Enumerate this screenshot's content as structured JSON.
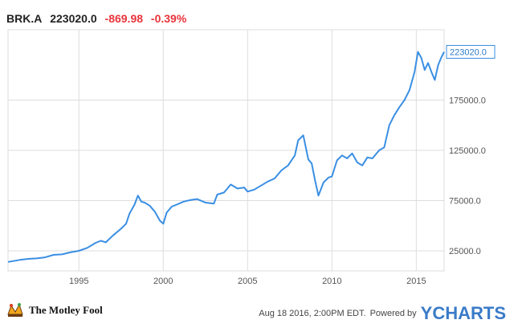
{
  "header": {
    "ticker": "BRK.A",
    "price": "223020.0",
    "change": "-869.98",
    "change_pct": "-0.39%"
  },
  "footer": {
    "brand": "The Motley Fool",
    "timestamp": "Aug 18 2016, 2:00PM EDT.",
    "powered_by": "Powered by",
    "provider": "YCHARTS"
  },
  "colors": {
    "line": "#3a8fe3",
    "grid": "#dddddd",
    "axis_text": "#555555",
    "negative": "#e8343b",
    "last_label_text": "#2d7ac7"
  },
  "chart_data": {
    "type": "line",
    "title": "",
    "xlabel": "",
    "ylabel": "",
    "xlim": [
      1990.8,
      2016.65
    ],
    "ylim": [
      5000,
      245000
    ],
    "x_ticks": [
      1995,
      2000,
      2005,
      2010,
      2015
    ],
    "x_tick_labels": [
      "1995",
      "2000",
      "2005",
      "2010",
      "2015"
    ],
    "y_ticks": [
      25000,
      75000,
      125000,
      175000
    ],
    "y_tick_labels": [
      "25000.0",
      "75000.0",
      "125000.0",
      "175000.0"
    ],
    "last_value_label": "223020.0",
    "grid": true,
    "series": [
      {
        "x": [
          1990.8,
          1991.5,
          1992.0,
          1992.5,
          1993.0,
          1993.5,
          1994.0,
          1994.5,
          1995.0,
          1995.5,
          1996.0,
          1996.3,
          1996.6,
          1997.0,
          1997.5,
          1997.8,
          1998.0,
          1998.3,
          1998.5,
          1998.7,
          1998.9,
          1999.2,
          1999.5,
          1999.8,
          2000.0,
          2000.2,
          2000.5,
          2000.8,
          2001.2,
          2001.6,
          2002.0,
          2002.5,
          2003.0,
          2003.2,
          2003.6,
          2004.0,
          2004.4,
          2004.8,
          2005.0,
          2005.4,
          2005.8,
          2006.2,
          2006.6,
          2007.0,
          2007.4,
          2007.8,
          2008.0,
          2008.3,
          2008.6,
          2008.8,
          2009.0,
          2009.2,
          2009.5,
          2009.8,
          2010.0,
          2010.3,
          2010.6,
          2010.9,
          2011.2,
          2011.5,
          2011.8,
          2012.1,
          2012.4,
          2012.8,
          2013.1,
          2013.4,
          2013.7,
          2014.0,
          2014.3,
          2014.6,
          2014.9,
          2015.1,
          2015.3,
          2015.5,
          2015.7,
          2015.9,
          2016.1,
          2016.3,
          2016.5,
          2016.65
        ],
        "y": [
          14000,
          16000,
          17000,
          17500,
          18500,
          21000,
          21500,
          23500,
          25000,
          28000,
          33000,
          35000,
          33500,
          40000,
          47000,
          52000,
          62000,
          71000,
          80000,
          74000,
          73000,
          70000,
          64000,
          55000,
          52000,
          63000,
          69000,
          71000,
          74000,
          75500,
          76500,
          73000,
          72000,
          81000,
          83000,
          91000,
          87000,
          88000,
          84000,
          86000,
          90000,
          94000,
          97000,
          105000,
          110000,
          120000,
          135000,
          140000,
          116000,
          112000,
          95000,
          80000,
          93000,
          98000,
          99000,
          115000,
          120000,
          117000,
          122000,
          113000,
          110000,
          118000,
          117000,
          125000,
          128000,
          150000,
          160000,
          168000,
          175000,
          185000,
          203000,
          223000,
          217000,
          205000,
          212000,
          203000,
          195000,
          210000,
          218000,
          223020
        ]
      }
    ]
  }
}
